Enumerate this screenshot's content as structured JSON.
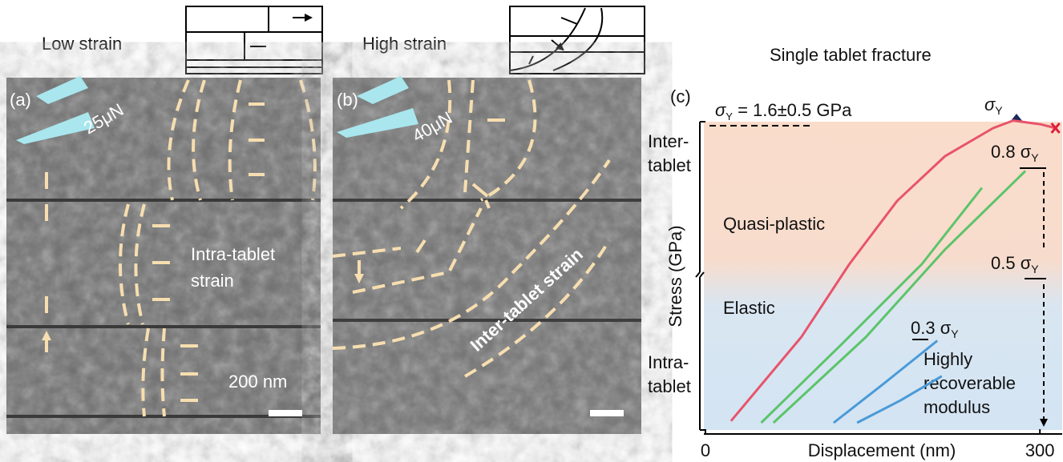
{
  "panel_a": {
    "label": "(a)",
    "caption": "Low strain",
    "force": "25μN",
    "annotation": [
      "Intra-tablet",
      "strain"
    ],
    "scale_bar": "200 nm"
  },
  "panel_b": {
    "label": "(b)",
    "caption": "High strain",
    "force": "40μN",
    "annotation": "Inter-tablet strain"
  },
  "chart_data": {
    "type": "line",
    "title": "Single tablet fracture",
    "panel_label": "(c)",
    "xlabel": "Displacement (nm)",
    "ylabel": "Stress (GPa)",
    "xlim": [
      -5,
      320
    ],
    "ylim": [
      0,
      1.7
    ],
    "xticks": [
      0,
      300
    ],
    "series": [
      {
        "color": "#e8546a",
        "x": [
          23,
          86,
          129,
          172,
          215,
          258,
          276,
          301,
          314
        ],
        "values": [
          0.04,
          0.49,
          0.88,
          1.22,
          1.46,
          1.61,
          1.65,
          1.63,
          1.61
        ]
      },
      {
        "color": "#5cc46a",
        "x": [
          50,
          122,
          194,
          248
        ],
        "values": [
          0.03,
          0.45,
          0.88,
          1.29
        ]
      },
      {
        "color": "#5cc46a",
        "x": [
          61,
          144,
          215,
          287
        ],
        "values": [
          0.03,
          0.49,
          0.96,
          1.38
        ]
      },
      {
        "color": "#4a9ad8",
        "x": [
          115,
          160,
          208
        ],
        "values": [
          0.03,
          0.24,
          0.47
        ]
      },
      {
        "color": "#4a9ad8",
        "x": [
          136,
          175,
          212
        ],
        "values": [
          0.03,
          0.15,
          0.28
        ]
      }
    ],
    "zone_labels": {
      "inter": [
        "Inter-",
        "tablet"
      ],
      "intra": [
        "Intra-",
        "tablet"
      ],
      "quasi_plastic": "Quasi-plastic",
      "elastic": "Elastic"
    },
    "yield_label": {
      "text": "σ",
      "sub": "Y"
    },
    "yield_text": {
      "text": "σ",
      "sub": "Y",
      "post": " = 1.6±0.5 GPa"
    },
    "levels": [
      {
        "text": "0.8 σ",
        "sub": "Y"
      },
      {
        "text": "0.5 σ",
        "sub": "Y"
      },
      {
        "text": "0.3 σ",
        "sub": "Y"
      }
    ],
    "modulus_note": [
      "Highly",
      "recoverable",
      "modulus"
    ]
  }
}
